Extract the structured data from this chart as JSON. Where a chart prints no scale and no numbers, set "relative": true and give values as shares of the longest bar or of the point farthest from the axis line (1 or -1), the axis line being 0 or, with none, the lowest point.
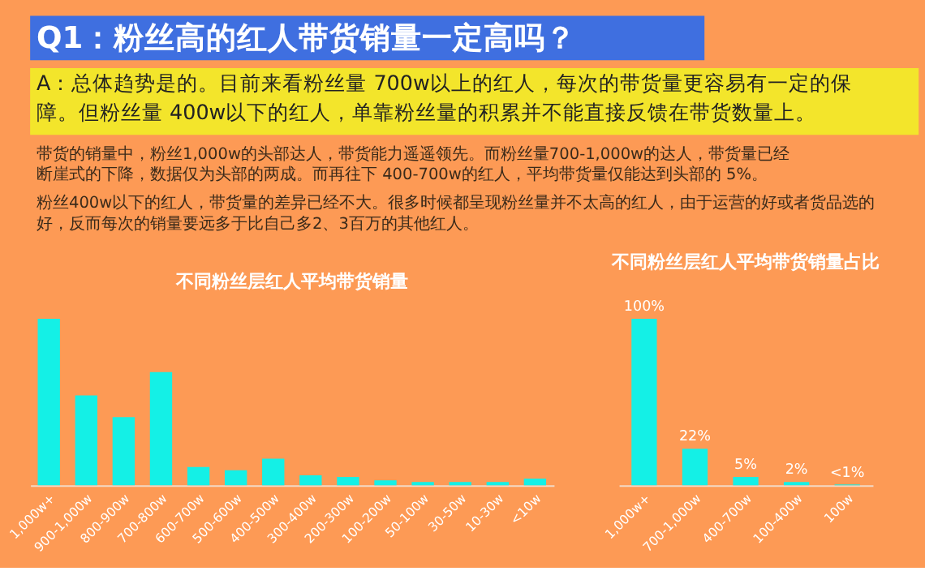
{
  "chart_data": [
    {
      "type": "other",
      "title": "Q1：粉丝高的红人带货销量一定高吗？",
      "annotations": [
        "A：总体趋势是的。目前来看粉丝量 700w以上的红人，每次的带货量更容易有一定的保障。但粉丝量 400w以下的红人，单靠粉丝量的积累并不能直接反馈在带货数量上。",
        "带货的销量中，粉丝1,000w的头部达人，带货能力遥遥领先。而粉丝量700-1,000w的达人，带货量已经断崖式的下降，数据仅为头部的两成。而再往下 400-700w的红人，平均带货量仅能达到头部的 5%。",
        "粉丝400w以下的红人，带货量的差异已经不大。很多时候都呈现粉丝量并不太高的红人，由于运营的好或者货品选的好，反而每次的销量要远多于比自己多2、3百万的其他红人。"
      ]
    },
    {
      "type": "bar",
      "title": "不同粉丝层红人平均带货销量",
      "relative": true,
      "categories": [
        "1,000w+",
        "900-1,000w",
        "800-900w",
        "700-800w",
        "600-700w",
        "500-600w",
        "400-500w",
        "300-400w",
        "200-300w",
        "100-200w",
        "50-100w",
        "30-50w",
        "10-30w",
        "<10w"
      ],
      "series": [
        {
          "color": "#14f0e6",
          "values": [
            1,
            0.54,
            0.41,
            0.68,
            0.11,
            0.09,
            0.16,
            0.06,
            0.05,
            0.03,
            0.02,
            0.02,
            0.02,
            0.04
          ]
        }
      ]
    },
    {
      "type": "bar",
      "title": "不同粉丝层红人平均带货销量占比",
      "categories": [
        "1,000w+",
        "700-1,000w",
        "400-700w",
        "100-400w",
        "100w"
      ],
      "series": [
        {
          "color": "#14f0e6",
          "values": [
            100,
            22,
            5,
            2,
            0.5
          ],
          "value_labels": [
            "100%",
            "22%",
            "5%",
            "2%",
            "<1%"
          ]
        }
      ]
    }
  ]
}
